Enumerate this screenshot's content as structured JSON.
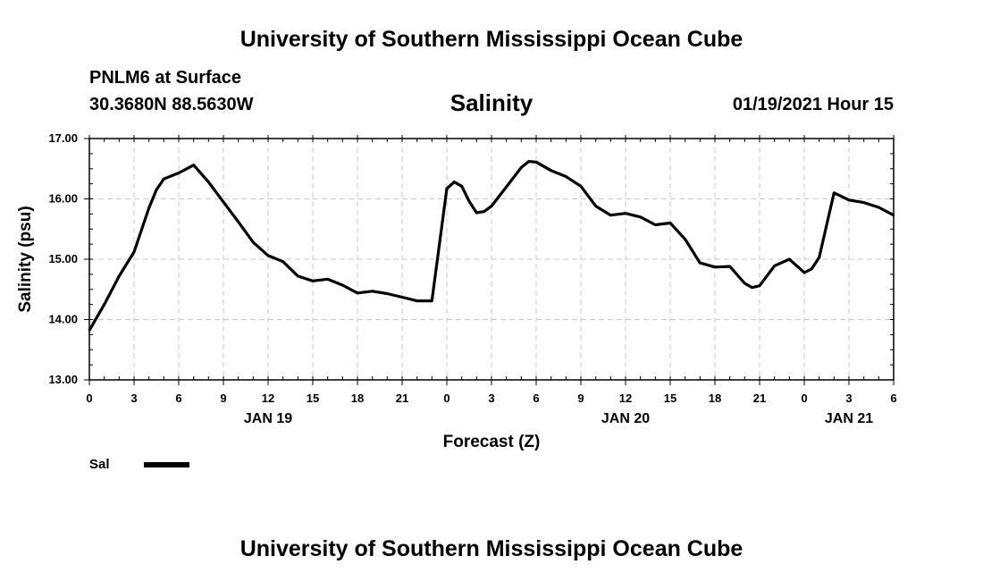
{
  "header": {
    "top_title": "University of Southern Mississippi Ocean Cube",
    "bottom_title": "University of Southern Mississippi Ocean Cube",
    "station": "PNLM6 at Surface",
    "coords": "30.3680N 88.5630W",
    "variable": "Salinity",
    "timestamp": "01/19/2021 Hour 15"
  },
  "legend": {
    "label": "Sal",
    "color": "#000000"
  },
  "chart_data": {
    "type": "line",
    "title": "Salinity",
    "xlabel": "Forecast (Z)",
    "ylabel": "Salinity (psu)",
    "ylim": [
      13.0,
      17.0
    ],
    "xlim": [
      "2021-01-19 00:00",
      "2021-01-21 06:00"
    ],
    "yticks": [
      "13.00",
      "14.00",
      "15.00",
      "16.00",
      "17.00"
    ],
    "xticks": [
      "0",
      "3",
      "6",
      "9",
      "12",
      "15",
      "18",
      "21",
      "0",
      "3",
      "6",
      "9",
      "12",
      "15",
      "18",
      "21",
      "0",
      "3",
      "6"
    ],
    "day_labels": [
      {
        "label": "JAN 19",
        "at": "2021-01-19 12:00"
      },
      {
        "label": "JAN 20",
        "at": "2021-01-20 12:00"
      },
      {
        "label": "JAN 21",
        "at": "2021-01-21 03:00"
      }
    ],
    "grid": true,
    "legend_position": "bottom-left",
    "series": [
      {
        "name": "Sal",
        "color": "#000000",
        "x": [
          "2021-01-19 00:00",
          "2021-01-19 01:00",
          "2021-01-19 02:00",
          "2021-01-19 03:00",
          "2021-01-19 04:00",
          "2021-01-19 04:30",
          "2021-01-19 05:00",
          "2021-01-19 06:00",
          "2021-01-19 07:00",
          "2021-01-19 08:00",
          "2021-01-19 09:00",
          "2021-01-19 10:00",
          "2021-01-19 11:00",
          "2021-01-19 12:00",
          "2021-01-19 13:00",
          "2021-01-19 14:00",
          "2021-01-19 15:00",
          "2021-01-19 16:00",
          "2021-01-19 17:00",
          "2021-01-19 18:00",
          "2021-01-19 19:00",
          "2021-01-19 20:00",
          "2021-01-19 21:00",
          "2021-01-19 22:00",
          "2021-01-19 23:00",
          "2021-01-20 00:00",
          "2021-01-20 00:30",
          "2021-01-20 01:00",
          "2021-01-20 01:30",
          "2021-01-20 02:00",
          "2021-01-20 02:30",
          "2021-01-20 03:00",
          "2021-01-20 04:00",
          "2021-01-20 05:00",
          "2021-01-20 05:30",
          "2021-01-20 06:00",
          "2021-01-20 07:00",
          "2021-01-20 08:00",
          "2021-01-20 09:00",
          "2021-01-20 10:00",
          "2021-01-20 11:00",
          "2021-01-20 12:00",
          "2021-01-20 13:00",
          "2021-01-20 14:00",
          "2021-01-20 15:00",
          "2021-01-20 16:00",
          "2021-01-20 17:00",
          "2021-01-20 18:00",
          "2021-01-20 19:00",
          "2021-01-20 20:00",
          "2021-01-20 20:30",
          "2021-01-20 21:00",
          "2021-01-20 22:00",
          "2021-01-20 23:00",
          "2021-01-21 00:00",
          "2021-01-21 00:30",
          "2021-01-21 01:00",
          "2021-01-21 02:00",
          "2021-01-21 03:00",
          "2021-01-21 04:00",
          "2021-01-21 05:00",
          "2021-01-21 06:00"
        ],
        "y": [
          13.82,
          14.25,
          14.72,
          15.12,
          15.85,
          16.15,
          16.33,
          16.43,
          16.56,
          16.28,
          15.95,
          15.62,
          15.28,
          15.06,
          14.96,
          14.72,
          14.64,
          14.67,
          14.57,
          14.44,
          14.47,
          14.43,
          14.37,
          14.31,
          14.31,
          16.17,
          16.28,
          16.21,
          15.96,
          15.77,
          15.79,
          15.88,
          16.2,
          16.52,
          16.62,
          16.61,
          16.47,
          16.37,
          16.21,
          15.88,
          15.73,
          15.76,
          15.7,
          15.57,
          15.6,
          15.33,
          14.94,
          14.87,
          14.88,
          14.6,
          14.53,
          14.56,
          14.89,
          15.0,
          14.78,
          14.84,
          15.03,
          16.1,
          15.98,
          15.94,
          15.86,
          15.73
        ]
      }
    ]
  }
}
